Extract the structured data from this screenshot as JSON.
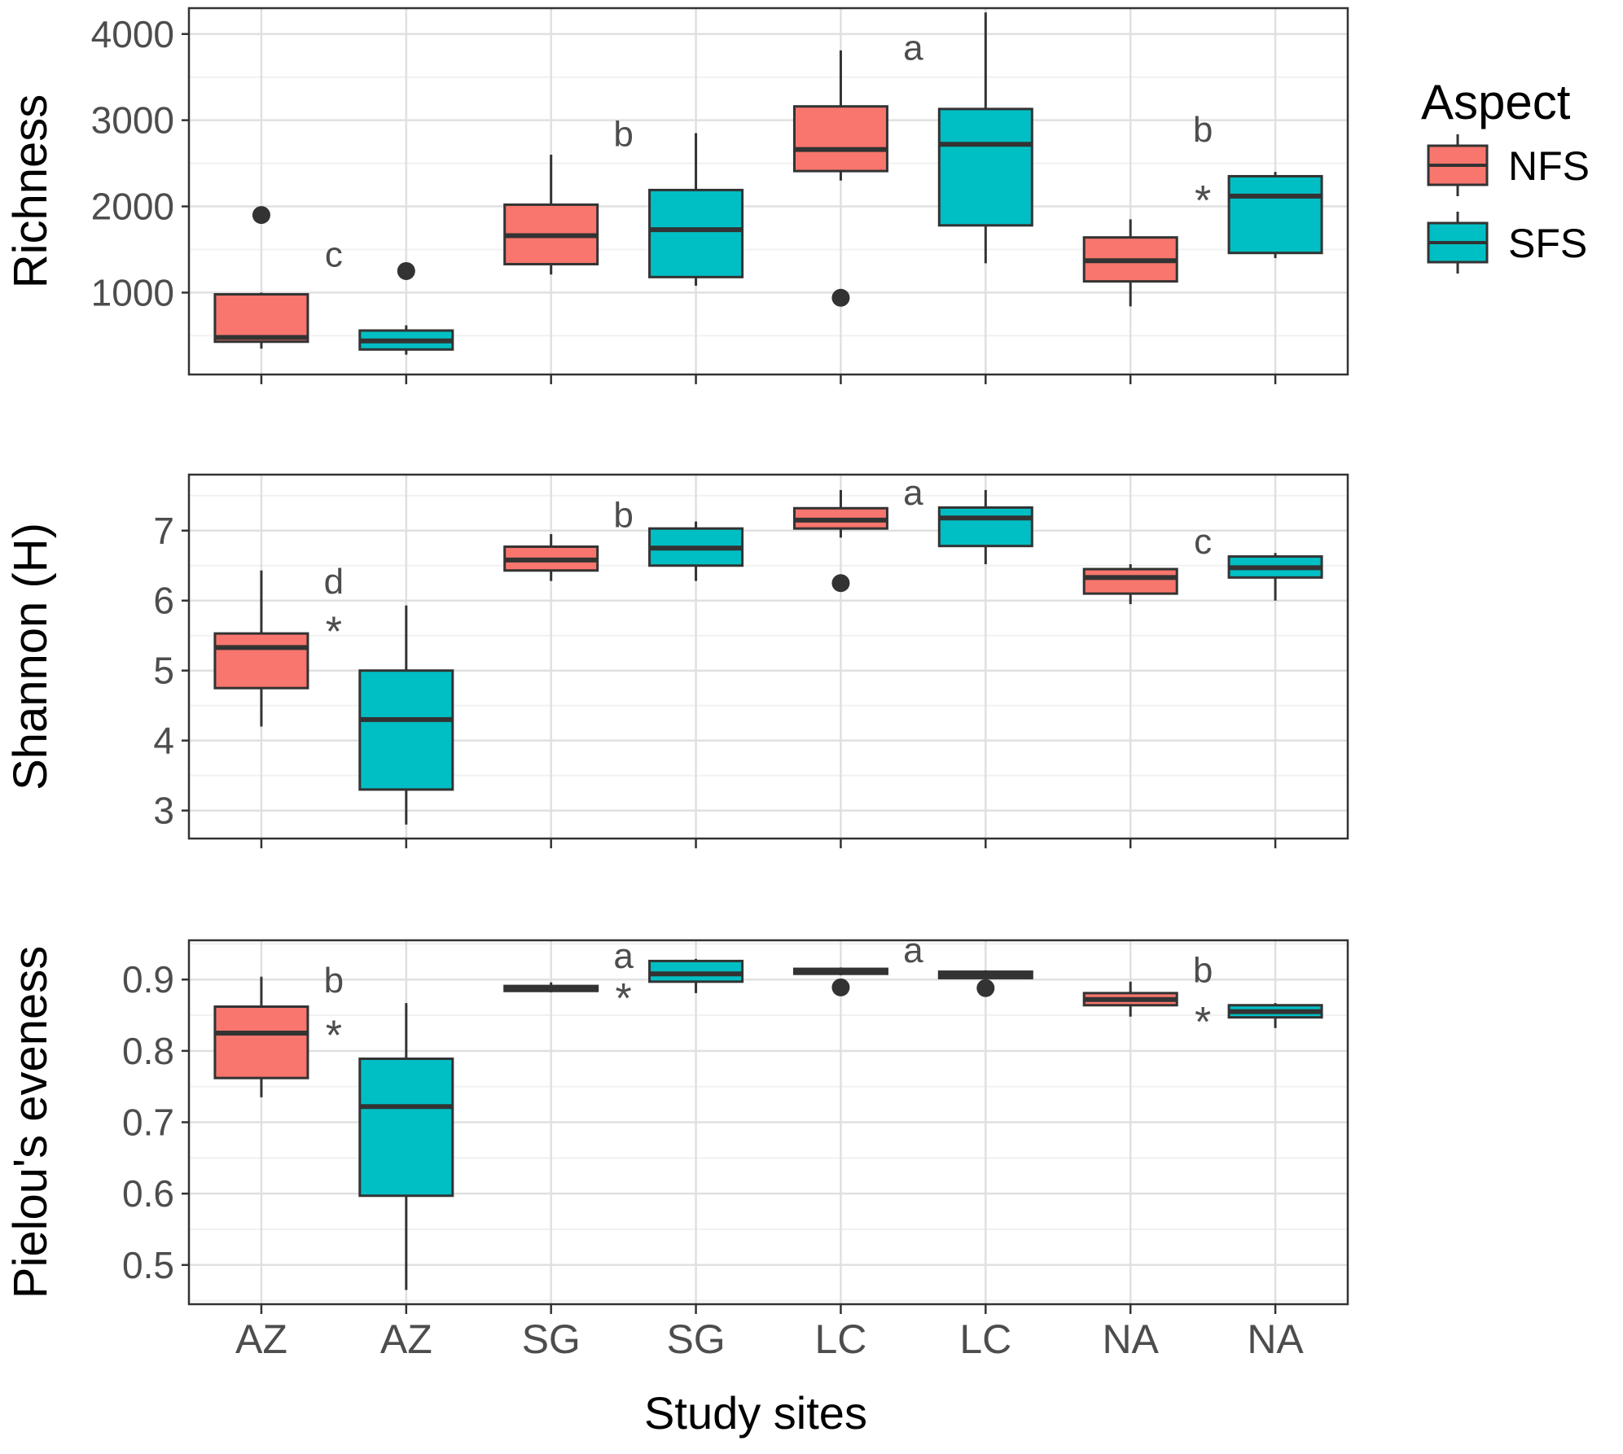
{
  "figure": {
    "xlabel": "Study sites",
    "categories": [
      "AZ",
      "AZ",
      "SG",
      "SG",
      "LC",
      "LC",
      "NA",
      "NA"
    ],
    "groups": [
      "NFS",
      "SFS",
      "NFS",
      "SFS",
      "NFS",
      "SFS",
      "NFS",
      "SFS"
    ]
  },
  "legend": {
    "title": "Aspect",
    "items": [
      {
        "label": "NFS",
        "color": "#f8766d"
      },
      {
        "label": "SFS",
        "color": "#00bfc4"
      }
    ]
  },
  "chart_data": [
    {
      "type": "box",
      "ylabel": "Richness",
      "ylim": [
        50,
        4300
      ],
      "yticks": [
        1000,
        2000,
        3000,
        4000
      ],
      "yticklabels": [
        "1000",
        "2000",
        "3000",
        "4000"
      ],
      "boxes": [
        {
          "site": "AZ",
          "aspect": "NFS",
          "min": 350,
          "q1": 430,
          "median": 480,
          "q3": 980,
          "max": 1000,
          "outliers": [
            1900
          ]
        },
        {
          "site": "AZ",
          "aspect": "SFS",
          "min": 280,
          "q1": 340,
          "median": 440,
          "q3": 560,
          "max": 620,
          "outliers": [
            1250
          ]
        },
        {
          "site": "SG",
          "aspect": "NFS",
          "min": 1210,
          "q1": 1330,
          "median": 1660,
          "q3": 2020,
          "max": 2600,
          "outliers": []
        },
        {
          "site": "SG",
          "aspect": "SFS",
          "min": 1080,
          "q1": 1180,
          "median": 1730,
          "q3": 2190,
          "max": 2850,
          "outliers": []
        },
        {
          "site": "LC",
          "aspect": "NFS",
          "min": 2300,
          "q1": 2410,
          "median": 2660,
          "q3": 3160,
          "max": 3810,
          "outliers": [
            940
          ]
        },
        {
          "site": "LC",
          "aspect": "SFS",
          "min": 1340,
          "q1": 1780,
          "median": 2720,
          "q3": 3130,
          "max": 4250,
          "outliers": []
        },
        {
          "site": "NA",
          "aspect": "NFS",
          "min": 840,
          "q1": 1130,
          "median": 1370,
          "q3": 1640,
          "max": 1850,
          "outliers": []
        },
        {
          "site": "NA",
          "aspect": "SFS",
          "min": 1400,
          "q1": 1460,
          "median": 2120,
          "q3": 2350,
          "max": 2400,
          "outliers": []
        }
      ],
      "annotations": [
        {
          "text": "c",
          "between": [
            1,
            2
          ],
          "y": 1300
        },
        {
          "text": "b",
          "between": [
            3,
            4
          ],
          "y": 2700
        },
        {
          "text": "a",
          "between": [
            5,
            6
          ],
          "y": 3700
        },
        {
          "text": "b",
          "between": [
            7,
            8
          ],
          "y": 2750
        },
        {
          "text": "*",
          "between": [
            7,
            8
          ],
          "y": 2130
        }
      ]
    },
    {
      "type": "box",
      "ylabel": "Shannon (H)",
      "ylim": [
        2.6,
        7.8
      ],
      "yticks": [
        3,
        4,
        5,
        6,
        7
      ],
      "yticklabels": [
        "3",
        "4",
        "5",
        "6",
        "7"
      ],
      "boxes": [
        {
          "site": "AZ",
          "aspect": "NFS",
          "min": 4.2,
          "q1": 4.75,
          "median": 5.33,
          "q3": 5.53,
          "max": 6.43,
          "outliers": []
        },
        {
          "site": "AZ",
          "aspect": "SFS",
          "min": 2.8,
          "q1": 3.3,
          "median": 4.3,
          "q3": 5.0,
          "max": 5.93,
          "outliers": []
        },
        {
          "site": "SG",
          "aspect": "NFS",
          "min": 6.28,
          "q1": 6.43,
          "median": 6.58,
          "q3": 6.77,
          "max": 6.95,
          "outliers": []
        },
        {
          "site": "SG",
          "aspect": "SFS",
          "min": 6.28,
          "q1": 6.5,
          "median": 6.75,
          "q3": 7.03,
          "max": 7.13,
          "outliers": []
        },
        {
          "site": "LC",
          "aspect": "NFS",
          "min": 6.9,
          "q1": 7.03,
          "median": 7.15,
          "q3": 7.32,
          "max": 7.58,
          "outliers": [
            6.25
          ]
        },
        {
          "site": "LC",
          "aspect": "SFS",
          "min": 6.52,
          "q1": 6.78,
          "median": 7.18,
          "q3": 7.33,
          "max": 7.58,
          "outliers": []
        },
        {
          "site": "NA",
          "aspect": "NFS",
          "min": 5.95,
          "q1": 6.1,
          "median": 6.33,
          "q3": 6.45,
          "max": 6.52,
          "outliers": []
        },
        {
          "site": "NA",
          "aspect": "SFS",
          "min": 6.0,
          "q1": 6.33,
          "median": 6.47,
          "q3": 6.63,
          "max": 6.68,
          "outliers": []
        }
      ],
      "annotations": [
        {
          "text": "d",
          "between": [
            1,
            2
          ],
          "y": 6.1
        },
        {
          "text": "*",
          "between": [
            1,
            2
          ],
          "y": 5.63
        },
        {
          "text": "b",
          "between": [
            3,
            4
          ],
          "y": 7.05
        },
        {
          "text": "a",
          "between": [
            5,
            6
          ],
          "y": 7.37
        },
        {
          "text": "c",
          "between": [
            7,
            8
          ],
          "y": 6.67
        }
      ]
    },
    {
      "type": "box",
      "ylabel": "Pielou's eveness",
      "ylim": [
        0.445,
        0.955
      ],
      "yticks": [
        0.5,
        0.6,
        0.7,
        0.8,
        0.9
      ],
      "yticklabels": [
        "0.5",
        "0.6",
        "0.7",
        "0.8",
        "0.9"
      ],
      "boxes": [
        {
          "site": "AZ",
          "aspect": "NFS",
          "min": 0.735,
          "q1": 0.762,
          "median": 0.825,
          "q3": 0.862,
          "max": 0.904,
          "outliers": []
        },
        {
          "site": "AZ",
          "aspect": "SFS",
          "min": 0.465,
          "q1": 0.597,
          "median": 0.722,
          "q3": 0.789,
          "max": 0.867,
          "outliers": []
        },
        {
          "site": "SG",
          "aspect": "NFS",
          "min": 0.882,
          "q1": 0.884,
          "median": 0.887,
          "q3": 0.891,
          "max": 0.896,
          "outliers": []
        },
        {
          "site": "SG",
          "aspect": "SFS",
          "min": 0.881,
          "q1": 0.897,
          "median": 0.908,
          "q3": 0.926,
          "max": 0.929,
          "outliers": []
        },
        {
          "site": "LC",
          "aspect": "NFS",
          "min": 0.906,
          "q1": 0.908,
          "median": 0.911,
          "q3": 0.915,
          "max": 0.917,
          "outliers": [
            0.889
          ]
        },
        {
          "site": "LC",
          "aspect": "SFS",
          "min": 0.901,
          "q1": 0.902,
          "median": 0.906,
          "q3": 0.911,
          "max": 0.913,
          "outliers": [
            0.888
          ]
        },
        {
          "site": "NA",
          "aspect": "NFS",
          "min": 0.848,
          "q1": 0.864,
          "median": 0.872,
          "q3": 0.881,
          "max": 0.897,
          "outliers": []
        },
        {
          "site": "NA",
          "aspect": "SFS",
          "min": 0.832,
          "q1": 0.847,
          "median": 0.855,
          "q3": 0.864,
          "max": 0.867,
          "outliers": []
        }
      ],
      "annotations": [
        {
          "text": "b",
          "between": [
            1,
            2
          ],
          "y": 0.882
        },
        {
          "text": "*",
          "between": [
            1,
            2
          ],
          "y": 0.829
        },
        {
          "text": "a",
          "between": [
            3,
            4
          ],
          "y": 0.916
        },
        {
          "text": "*",
          "between": [
            3,
            4
          ],
          "y": 0.881
        },
        {
          "text": "a",
          "between": [
            5,
            6
          ],
          "y": 0.924
        },
        {
          "text": "b",
          "between": [
            7,
            8
          ],
          "y": 0.896
        },
        {
          "text": "*",
          "between": [
            7,
            8
          ],
          "y": 0.848
        }
      ]
    }
  ]
}
